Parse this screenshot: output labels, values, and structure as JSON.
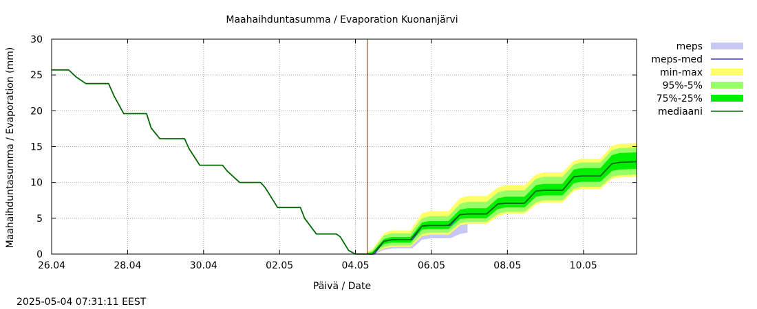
{
  "chart_data": {
    "type": "area",
    "title": "Maahaihduntasumma / Evaporation   Kuonanjärvi",
    "xlabel": "Päivä / Date",
    "ylabel": "Maahaihduntasumma / Evaporation (mm)",
    "timestamp": "2025-05-04 07:31:11 EEST",
    "x_unit": "days since 26.04",
    "xlim": [
      0,
      15.4
    ],
    "ylim": [
      0,
      30
    ],
    "yticks": [
      0,
      5,
      10,
      15,
      20,
      25,
      30
    ],
    "xticks": [
      {
        "x": 0,
        "label": "26.04"
      },
      {
        "x": 2,
        "label": "28.04"
      },
      {
        "x": 4,
        "label": "30.04"
      },
      {
        "x": 6,
        "label": "02.05"
      },
      {
        "x": 8,
        "label": "04.05"
      },
      {
        "x": 10,
        "label": "06.05"
      },
      {
        "x": 12,
        "label": "08.05"
      },
      {
        "x": 14,
        "label": "10.05"
      }
    ],
    "grid": true,
    "legend_position": "right",
    "forecast_start_x": 8.31,
    "colors": {
      "meps": "#c8c8f4",
      "meps_med": "#3a3ab8",
      "min_max": "#ffff66",
      "p95_5": "#99ff66",
      "p75_25": "#00ee00",
      "median": "#006600",
      "now_line": "#cc0000",
      "grid": "#a0a0a0"
    },
    "legend": [
      {
        "key": "meps",
        "label": "meps",
        "kind": "box"
      },
      {
        "key": "meps_med",
        "label": "meps-med",
        "kind": "line"
      },
      {
        "key": "min_max",
        "label": "min-max",
        "kind": "box"
      },
      {
        "key": "p95_5",
        "label": "95%-5%",
        "kind": "box"
      },
      {
        "key": "p75_25",
        "label": "75%-25%",
        "kind": "box"
      },
      {
        "key": "median",
        "label": "mediaani",
        "kind": "line"
      }
    ],
    "history": {
      "x": [
        0,
        0.45,
        0.65,
        0.9,
        1.5,
        1.65,
        1.9,
        2.5,
        2.62,
        2.85,
        3.5,
        3.62,
        3.9,
        4.5,
        4.62,
        4.95,
        5.5,
        5.62,
        5.95,
        6.55,
        6.66,
        6.97,
        7.5,
        7.6,
        7.82,
        8.0,
        8.15,
        8.31
      ],
      "y": [
        25.7,
        25.7,
        24.7,
        23.8,
        23.8,
        22.0,
        19.6,
        19.6,
        17.6,
        16.1,
        16.1,
        14.7,
        12.4,
        12.4,
        11.6,
        10.0,
        10.0,
        9.3,
        6.5,
        6.5,
        5.0,
        2.8,
        2.8,
        2.4,
        0.5,
        0.0,
        0.0,
        0.0
      ]
    },
    "forecast": {
      "x": [
        8.31,
        8.45,
        8.75,
        8.95,
        9.45,
        9.75,
        9.95,
        10.45,
        10.75,
        10.95,
        11.45,
        11.75,
        11.95,
        12.45,
        12.75,
        12.95,
        13.45,
        13.75,
        13.95,
        14.45,
        14.75,
        14.95,
        15.4
      ],
      "median": [
        0.0,
        0.0,
        1.8,
        2.0,
        2.0,
        3.9,
        4.0,
        4.0,
        5.5,
        5.6,
        5.6,
        7.0,
        7.1,
        7.1,
        8.8,
        8.9,
        8.9,
        10.8,
        10.9,
        10.9,
        12.6,
        12.8,
        12.9
      ],
      "p75": [
        0.1,
        0.3,
        2.1,
        2.4,
        2.4,
        4.4,
        4.6,
        4.6,
        6.2,
        6.4,
        6.4,
        7.8,
        8.0,
        8.0,
        9.6,
        9.8,
        9.8,
        11.8,
        12.0,
        12.0,
        13.8,
        14.1,
        14.2
      ],
      "p25": [
        0.0,
        0.0,
        1.4,
        1.6,
        1.6,
        3.4,
        3.5,
        3.5,
        4.9,
        5.0,
        5.0,
        6.3,
        6.5,
        6.5,
        8.0,
        8.2,
        8.2,
        9.9,
        10.1,
        10.1,
        11.6,
        11.8,
        11.9
      ],
      "p95": [
        0.2,
        0.5,
        2.6,
        2.9,
        2.9,
        5.0,
        5.3,
        5.3,
        7.0,
        7.3,
        7.3,
        8.6,
        8.9,
        8.9,
        10.5,
        10.8,
        10.8,
        12.5,
        12.8,
        12.8,
        14.5,
        14.8,
        14.9
      ],
      "p5": [
        0.0,
        0.0,
        1.0,
        1.2,
        1.2,
        2.8,
        3.0,
        3.0,
        4.3,
        4.5,
        4.5,
        5.6,
        5.9,
        5.9,
        7.2,
        7.5,
        7.5,
        9.1,
        9.4,
        9.4,
        10.8,
        11.0,
        11.1
      ],
      "max": [
        0.3,
        0.7,
        2.9,
        3.3,
        3.3,
        5.7,
        6.0,
        6.0,
        7.8,
        8.1,
        8.1,
        9.3,
        9.6,
        9.6,
        11.1,
        11.4,
        11.4,
        13.0,
        13.3,
        13.3,
        15.1,
        15.4,
        15.5
      ],
      "min": [
        0.0,
        0.0,
        0.8,
        1.0,
        1.0,
        2.5,
        2.7,
        2.7,
        4.0,
        4.2,
        4.2,
        5.3,
        5.6,
        5.6,
        6.9,
        7.2,
        7.2,
        8.8,
        9.1,
        9.1,
        10.5,
        10.7,
        10.8
      ]
    },
    "meps": {
      "x": [
        8.31,
        8.5,
        8.75,
        9.0,
        9.5,
        9.75,
        10.0,
        10.5,
        10.75,
        10.95
      ],
      "upper": [
        0.2,
        0.6,
        2.5,
        2.8,
        2.8,
        4.6,
        4.9,
        4.9,
        5.4,
        5.6
      ],
      "lower": [
        0.0,
        0.0,
        0.6,
        0.8,
        0.8,
        2.0,
        2.2,
        2.2,
        2.8,
        3.0
      ],
      "median": [
        0.0,
        0.0,
        1.8,
        2.0,
        2.0,
        3.9,
        4.0,
        4.0,
        5.5,
        5.6
      ]
    }
  }
}
